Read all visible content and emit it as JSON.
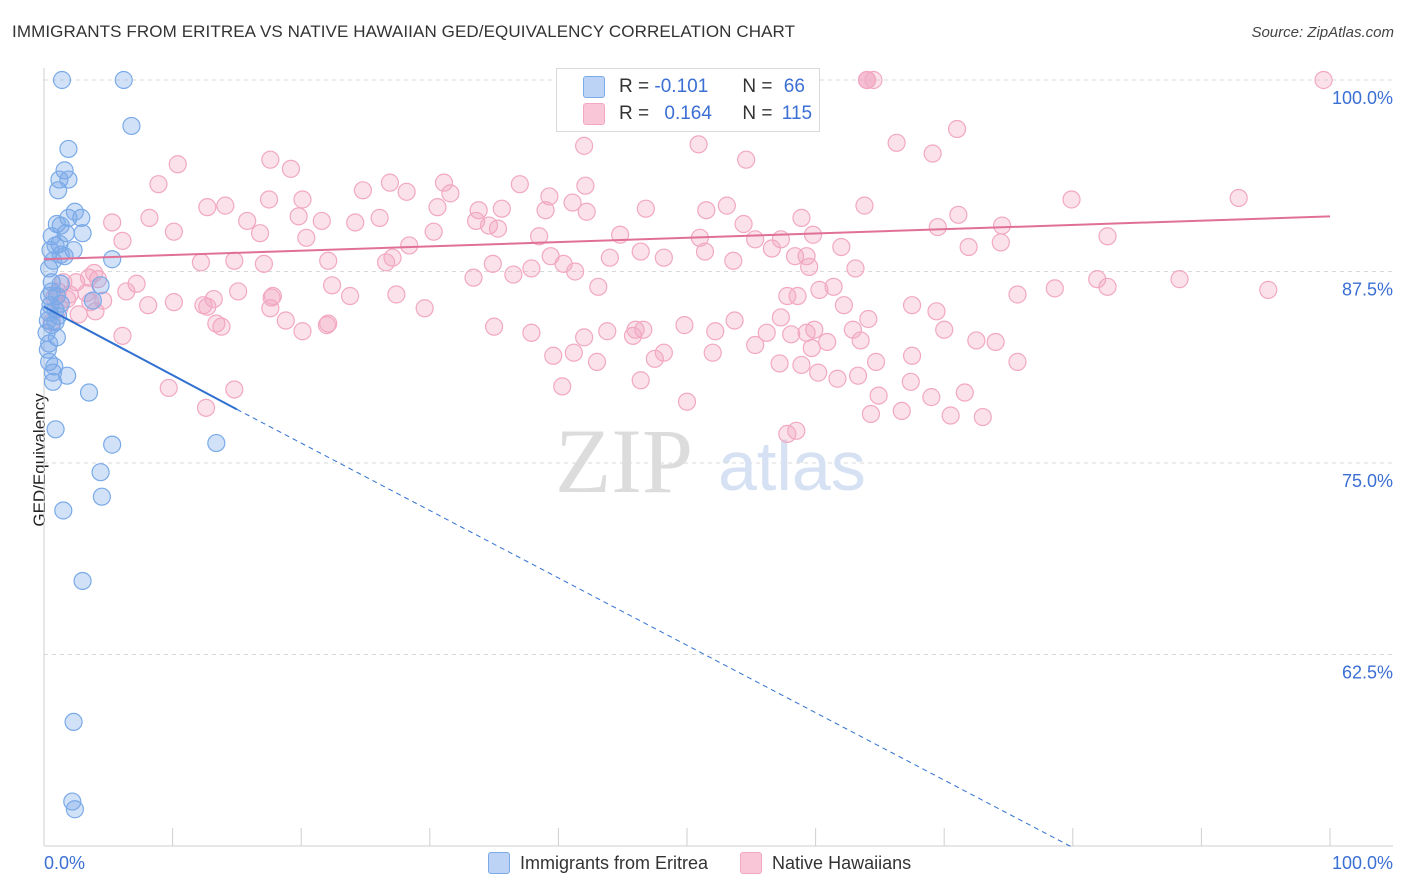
{
  "chart_data": {
    "type": "scatter",
    "title": "IMMIGRANTS FROM ERITREA VS NATIVE HAWAIIAN GED/EQUIVALENCY CORRELATION CHART",
    "source": "Source: ZipAtlas.com",
    "ylabel": "GED/Equivalency",
    "xlabel": "",
    "xlim": [
      0,
      100
    ],
    "ylim": [
      50,
      101
    ],
    "x_tick_labels": {
      "left": "0.0%",
      "right": "100.0%"
    },
    "y_ticks": [
      {
        "value": 100,
        "label": "100.0%"
      },
      {
        "value": 87.5,
        "label": "87.5%"
      },
      {
        "value": 75,
        "label": "75.0%"
      },
      {
        "value": 62.5,
        "label": "62.5%"
      }
    ],
    "watermark": {
      "zip": "ZIP",
      "atlas": "atlas"
    },
    "stats": [
      {
        "r_label": "R =",
        "r_value": "-0.101",
        "n_label": "N =",
        "n_value": "66"
      },
      {
        "r_label": "R =",
        "r_value": "0.164",
        "n_label": "N =",
        "n_value": "115"
      }
    ],
    "series": [
      {
        "name": "Immigrants from Eritrea",
        "color": "#7aaae8",
        "line_color": "#3070d0",
        "trend": {
          "x0": 0,
          "y0": 85.2,
          "x1": 15,
          "y1": 78.5,
          "dashed_to_x": 80,
          "dashed_to_y": 49.9
        },
        "points": [
          [
            1.4,
            100
          ],
          [
            6.2,
            100
          ],
          [
            6.8,
            97
          ],
          [
            1.9,
            95.5
          ],
          [
            1.6,
            94.1
          ],
          [
            1.2,
            93.5
          ],
          [
            1.9,
            93.5
          ],
          [
            1.1,
            92.8
          ],
          [
            2.4,
            91.4
          ],
          [
            1.9,
            91.0
          ],
          [
            2.9,
            91.0
          ],
          [
            1.3,
            90.5
          ],
          [
            1.0,
            90.6
          ],
          [
            3.0,
            90.0
          ],
          [
            1.7,
            90.0
          ],
          [
            0.6,
            89.8
          ],
          [
            1.2,
            89.3
          ],
          [
            0.9,
            89.2
          ],
          [
            0.5,
            88.9
          ],
          [
            2.3,
            88.9
          ],
          [
            1.3,
            88.6
          ],
          [
            1.6,
            88.5
          ],
          [
            5.3,
            88.3
          ],
          [
            0.7,
            88.2
          ],
          [
            0.4,
            87.7
          ],
          [
            0.6,
            86.8
          ],
          [
            4.4,
            86.6
          ],
          [
            1.3,
            86.7
          ],
          [
            0.6,
            86.2
          ],
          [
            0.4,
            85.9
          ],
          [
            1.0,
            85.9
          ],
          [
            1.3,
            85.4
          ],
          [
            3.8,
            85.6
          ],
          [
            0.5,
            85.3
          ],
          [
            0.9,
            85.0
          ],
          [
            0.4,
            84.8
          ],
          [
            1.1,
            84.6
          ],
          [
            0.3,
            84.3
          ],
          [
            0.6,
            84.0
          ],
          [
            0.9,
            84.2
          ],
          [
            0.2,
            83.5
          ],
          [
            1.0,
            83.2
          ],
          [
            0.4,
            82.8
          ],
          [
            0.3,
            82.4
          ],
          [
            0.4,
            81.6
          ],
          [
            0.8,
            81.3
          ],
          [
            0.7,
            80.9
          ],
          [
            1.8,
            80.7
          ],
          [
            0.7,
            80.3
          ],
          [
            3.5,
            79.6
          ],
          [
            0.9,
            77.2
          ],
          [
            5.3,
            76.2
          ],
          [
            13.4,
            76.3
          ],
          [
            4.4,
            74.4
          ],
          [
            4.5,
            72.8
          ],
          [
            1.5,
            71.9
          ],
          [
            3.0,
            67.3
          ],
          [
            2.3,
            58.1
          ],
          [
            2.2,
            52.9
          ],
          [
            2.4,
            52.4
          ]
        ]
      },
      {
        "name": "Native Hawaiians",
        "color": "#f2a8c2",
        "line_color": "#e07098",
        "trend": {
          "x0": 0,
          "y0": 88.3,
          "x1": 100,
          "y1": 91.1
        },
        "points": [
          [
            99.5,
            100
          ],
          [
            59.5,
            100
          ],
          [
            64,
            100
          ],
          [
            64.5,
            100
          ],
          [
            64,
            100
          ],
          [
            64,
            100
          ],
          [
            71,
            96.8
          ],
          [
            66.3,
            95.9
          ],
          [
            42,
            95.7
          ],
          [
            50.9,
            95.8
          ],
          [
            69.1,
            95.2
          ],
          [
            54.6,
            94.8
          ],
          [
            17.6,
            94.8
          ],
          [
            10.4,
            94.5
          ],
          [
            19.2,
            94.2
          ],
          [
            8.9,
            93.2
          ],
          [
            26.9,
            93.3
          ],
          [
            31.1,
            93.3
          ],
          [
            37.0,
            93.2
          ],
          [
            42.1,
            93.1
          ],
          [
            24.8,
            92.8
          ],
          [
            28.2,
            92.7
          ],
          [
            31.6,
            92.6
          ],
          [
            39.3,
            92.4
          ],
          [
            41.1,
            92.0
          ],
          [
            17.5,
            92.2
          ],
          [
            12.7,
            91.7
          ],
          [
            20.1,
            92.2
          ],
          [
            14.1,
            91.8
          ],
          [
            30.6,
            91.7
          ],
          [
            35.6,
            91.6
          ],
          [
            46.8,
            91.6
          ],
          [
            33.8,
            91.5
          ],
          [
            39.0,
            91.5
          ],
          [
            51.5,
            91.5
          ],
          [
            53.1,
            91.8
          ],
          [
            42.2,
            91.4
          ],
          [
            92.9,
            92.3
          ],
          [
            79.9,
            92.2
          ],
          [
            63.8,
            91.8
          ],
          [
            58.9,
            91.0
          ],
          [
            71.1,
            91.2
          ],
          [
            26.1,
            91.0
          ],
          [
            19.8,
            91.1
          ],
          [
            8.2,
            91.0
          ],
          [
            15.8,
            90.8
          ],
          [
            21.6,
            90.8
          ],
          [
            24.2,
            90.7
          ],
          [
            33.6,
            90.8
          ],
          [
            54.4,
            90.6
          ],
          [
            5.3,
            90.7
          ],
          [
            34.6,
            90.5
          ],
          [
            35.3,
            90.3
          ],
          [
            30.3,
            90.1
          ],
          [
            10.1,
            90.1
          ],
          [
            16.8,
            90.0
          ],
          [
            44.8,
            89.9
          ],
          [
            38.5,
            89.8
          ],
          [
            59.8,
            89.9
          ],
          [
            51.0,
            89.7
          ],
          [
            57.3,
            89.6
          ],
          [
            55.3,
            89.6
          ],
          [
            20.4,
            89.7
          ],
          [
            6.1,
            89.5
          ],
          [
            74.5,
            90.5
          ],
          [
            74.4,
            89.4
          ],
          [
            82.7,
            89.8
          ],
          [
            69.5,
            90.4
          ],
          [
            71.9,
            89.1
          ],
          [
            28.4,
            89.2
          ],
          [
            56.6,
            89.0
          ],
          [
            62.0,
            89.1
          ],
          [
            46.4,
            88.8
          ],
          [
            51.4,
            88.8
          ],
          [
            58.4,
            88.5
          ],
          [
            59.3,
            88.5
          ],
          [
            44.0,
            88.4
          ],
          [
            39.4,
            88.5
          ],
          [
            27.1,
            88.4
          ],
          [
            14.8,
            88.2
          ],
          [
            17.1,
            88.0
          ],
          [
            12.2,
            88.1
          ],
          [
            22.1,
            88.2
          ],
          [
            34.9,
            88.0
          ],
          [
            53.6,
            88.2
          ],
          [
            48.2,
            88.4
          ],
          [
            40.4,
            88.0
          ],
          [
            26.6,
            88.1
          ],
          [
            59.5,
            87.8
          ],
          [
            37.9,
            87.7
          ],
          [
            36.5,
            87.3
          ],
          [
            63.1,
            87.7
          ],
          [
            41.3,
            87.5
          ],
          [
            88.3,
            87.0
          ],
          [
            33.4,
            87.1
          ],
          [
            4.2,
            87.0
          ],
          [
            3.9,
            87.4
          ],
          [
            7.2,
            86.7
          ],
          [
            22.4,
            86.6
          ],
          [
            57.8,
            85.9
          ],
          [
            43.1,
            86.5
          ],
          [
            17.8,
            85.9
          ],
          [
            78.6,
            86.4
          ],
          [
            60.3,
            86.3
          ],
          [
            82.7,
            86.5
          ],
          [
            81.9,
            87.0
          ],
          [
            75.7,
            86.0
          ],
          [
            58.6,
            85.9
          ],
          [
            61.4,
            86.5
          ],
          [
            95.2,
            86.3
          ],
          [
            15.1,
            86.2
          ],
          [
            23.8,
            85.9
          ],
          [
            17.7,
            85.8
          ],
          [
            62.2,
            85.3
          ],
          [
            29.6,
            85.1
          ],
          [
            8.1,
            85.3
          ],
          [
            57.3,
            84.5
          ],
          [
            64.1,
            84.4
          ],
          [
            67.5,
            85.3
          ],
          [
            69.4,
            84.9
          ],
          [
            13.4,
            84.1
          ],
          [
            22.1,
            84.1
          ],
          [
            35.0,
            83.9
          ],
          [
            37.9,
            83.5
          ],
          [
            49.8,
            84.0
          ],
          [
            62.9,
            83.7
          ],
          [
            70.0,
            83.7
          ],
          [
            46.6,
            83.7
          ],
          [
            56.2,
            83.5
          ],
          [
            52.2,
            83.6
          ],
          [
            58.1,
            83.4
          ],
          [
            59.3,
            83.5
          ],
          [
            59.9,
            83.7
          ],
          [
            60.9,
            82.9
          ],
          [
            63.5,
            83.0
          ],
          [
            67.5,
            82.0
          ],
          [
            74.0,
            82.9
          ],
          [
            72.5,
            83.0
          ],
          [
            75.7,
            81.6
          ],
          [
            64.7,
            81.6
          ],
          [
            57.2,
            81.5
          ],
          [
            47.5,
            81.8
          ],
          [
            42.0,
            83.2
          ],
          [
            45.8,
            83.3
          ],
          [
            58.9,
            81.4
          ],
          [
            60.2,
            80.9
          ],
          [
            61.7,
            80.5
          ],
          [
            63.3,
            80.7
          ],
          [
            67.4,
            80.3
          ],
          [
            69.0,
            79.3
          ],
          [
            71.6,
            79.6
          ],
          [
            73.0,
            78.0
          ],
          [
            64.3,
            78.2
          ],
          [
            66.7,
            78.4
          ],
          [
            70.5,
            78.1
          ],
          [
            39.6,
            82.0
          ],
          [
            43.0,
            81.6
          ],
          [
            40.3,
            80.0
          ],
          [
            46.4,
            80.4
          ],
          [
            50.0,
            79.0
          ],
          [
            9.7,
            79.9
          ],
          [
            14.8,
            79.8
          ],
          [
            12.6,
            78.6
          ],
          [
            64.9,
            79.4
          ],
          [
            57.8,
            76.9
          ],
          [
            58.5,
            77.1
          ],
          [
            6.1,
            83.3
          ],
          [
            13.8,
            83.9
          ],
          [
            20.1,
            83.6
          ],
          [
            22.0,
            84.0
          ],
          [
            18.8,
            84.3
          ],
          [
            17.6,
            85.1
          ],
          [
            13.2,
            85.7
          ],
          [
            10.1,
            85.5
          ],
          [
            12.7,
            85.2
          ],
          [
            12.4,
            85.3
          ],
          [
            3.3,
            86.1
          ],
          [
            4.6,
            85.6
          ],
          [
            2.5,
            86.8
          ],
          [
            6.4,
            86.2
          ],
          [
            3.5,
            87.1
          ],
          [
            4.0,
            84.9
          ],
          [
            2.7,
            84.7
          ],
          [
            1.8,
            85.7
          ],
          [
            1.5,
            86.8
          ],
          [
            2.0,
            86.0
          ],
          [
            3.6,
            85.5
          ],
          [
            0.8,
            85.8
          ],
          [
            1.1,
            86.2
          ],
          [
            0.6,
            84.2
          ],
          [
            1.2,
            85.1
          ],
          [
            27.4,
            86.0
          ],
          [
            52.0,
            82.2
          ],
          [
            53.7,
            84.3
          ],
          [
            55.3,
            82.7
          ],
          [
            59.7,
            82.5
          ],
          [
            46.0,
            83.7
          ],
          [
            43.8,
            83.6
          ],
          [
            41.2,
            82.2
          ],
          [
            48.2,
            82.2
          ]
        ]
      }
    ]
  }
}
